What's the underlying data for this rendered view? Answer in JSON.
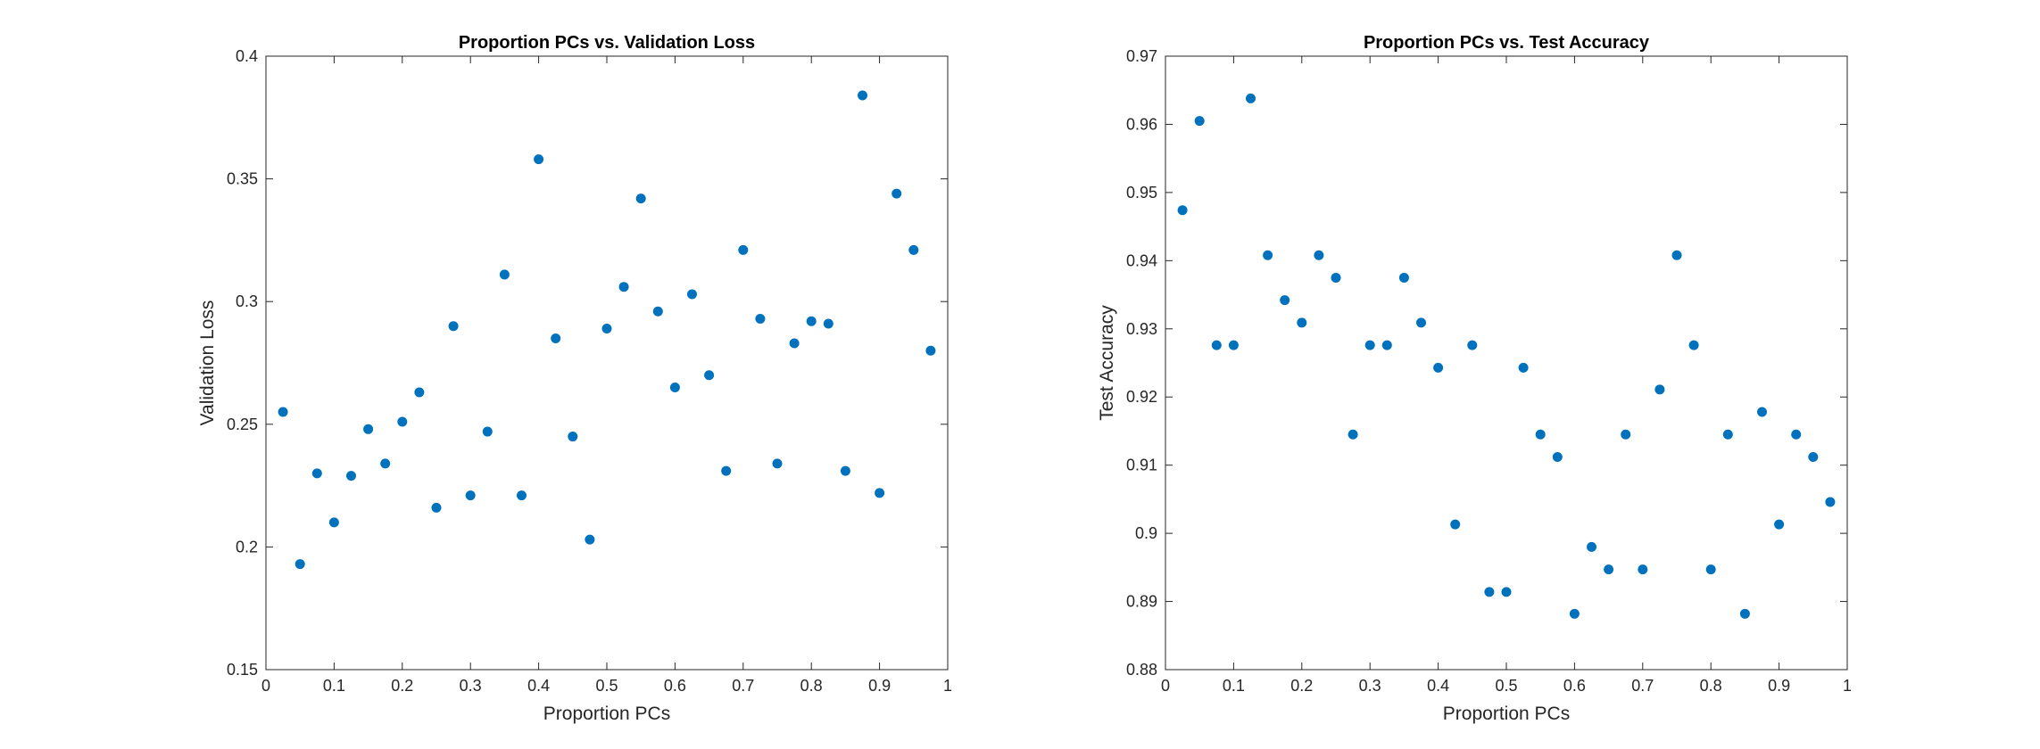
{
  "chart_data": [
    {
      "type": "scatter",
      "title": "Proportion PCs vs. Validation Loss",
      "xlabel": "Proportion PCs",
      "ylabel": "Validation Loss",
      "xlim": [
        0,
        1
      ],
      "ylim": [
        0.15,
        0.4
      ],
      "xticks": [
        0,
        0.1,
        0.2,
        0.3,
        0.4,
        0.5,
        0.6,
        0.7,
        0.8,
        0.9,
        1
      ],
      "xtick_labels": [
        "0",
        "0.1",
        "0.2",
        "0.3",
        "0.4",
        "0.5",
        "0.6",
        "0.7",
        "0.8",
        "0.9",
        "1"
      ],
      "yticks": [
        0.15,
        0.2,
        0.25,
        0.3,
        0.35,
        0.4
      ],
      "ytick_labels": [
        "0.15",
        "0.2",
        "0.25",
        "0.3",
        "0.35",
        "0.4"
      ],
      "grid": false,
      "marker_color": "#0072BD",
      "x": [
        0.025,
        0.05,
        0.075,
        0.1,
        0.125,
        0.15,
        0.175,
        0.2,
        0.225,
        0.25,
        0.275,
        0.3,
        0.325,
        0.35,
        0.375,
        0.4,
        0.425,
        0.45,
        0.475,
        0.5,
        0.525,
        0.55,
        0.575,
        0.6,
        0.625,
        0.65,
        0.675,
        0.7,
        0.725,
        0.75,
        0.775,
        0.8,
        0.825,
        0.85,
        0.875,
        0.9,
        0.925,
        0.95,
        0.975
      ],
      "y": [
        0.255,
        0.193,
        0.23,
        0.21,
        0.229,
        0.248,
        0.234,
        0.251,
        0.263,
        0.216,
        0.29,
        0.221,
        0.247,
        0.311,
        0.221,
        0.358,
        0.285,
        0.245,
        0.203,
        0.289,
        0.306,
        0.342,
        0.296,
        0.265,
        0.303,
        0.27,
        0.231,
        0.321,
        0.293,
        0.234,
        0.283,
        0.292,
        0.291,
        0.231,
        0.384,
        0.222,
        0.344,
        0.321,
        0.28
      ]
    },
    {
      "type": "scatter",
      "title": "Proportion PCs vs. Test Accuracy",
      "xlabel": "Proportion PCs",
      "ylabel": "Test Accuracy",
      "xlim": [
        0,
        1
      ],
      "ylim": [
        0.88,
        0.97
      ],
      "xticks": [
        0,
        0.1,
        0.2,
        0.3,
        0.4,
        0.5,
        0.6,
        0.7,
        0.8,
        0.9,
        1
      ],
      "xtick_labels": [
        "0",
        "0.1",
        "0.2",
        "0.3",
        "0.4",
        "0.5",
        "0.6",
        "0.7",
        "0.8",
        "0.9",
        "1"
      ],
      "yticks": [
        0.88,
        0.89,
        0.9,
        0.91,
        0.92,
        0.93,
        0.94,
        0.95,
        0.96,
        0.97
      ],
      "ytick_labels": [
        "0.88",
        "0.89",
        "0.9",
        "0.91",
        "0.92",
        "0.93",
        "0.94",
        "0.95",
        "0.96",
        "0.97"
      ],
      "grid": false,
      "marker_color": "#0072BD",
      "x": [
        0.025,
        0.05,
        0.075,
        0.1,
        0.125,
        0.15,
        0.175,
        0.2,
        0.225,
        0.25,
        0.275,
        0.3,
        0.325,
        0.35,
        0.375,
        0.4,
        0.425,
        0.45,
        0.475,
        0.5,
        0.525,
        0.55,
        0.575,
        0.6,
        0.625,
        0.65,
        0.675,
        0.7,
        0.725,
        0.75,
        0.775,
        0.8,
        0.825,
        0.85,
        0.875,
        0.9,
        0.925,
        0.95,
        0.975
      ],
      "y": [
        0.9474,
        0.9605,
        0.9276,
        0.9276,
        0.9638,
        0.9408,
        0.9342,
        0.9309,
        0.9408,
        0.9375,
        0.9145,
        0.9276,
        0.9276,
        0.9375,
        0.9309,
        0.9243,
        0.9013,
        0.9276,
        0.8914,
        0.8914,
        0.9243,
        0.9145,
        0.9112,
        0.8882,
        0.898,
        0.8947,
        0.9145,
        0.8947,
        0.9211,
        0.9408,
        0.9276,
        0.8947,
        0.9145,
        0.8882,
        0.9178,
        0.9013,
        0.9145,
        0.9112,
        0.9046
      ]
    }
  ]
}
